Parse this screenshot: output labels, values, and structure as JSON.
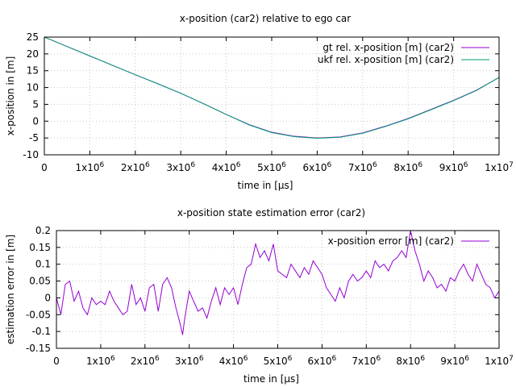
{
  "chart_data": [
    {
      "type": "line",
      "title": "x-position (car2) relative to ego car",
      "xlabel": "time in [μs]",
      "ylabel": "x-position in [m]",
      "xlim": [
        0,
        10000000
      ],
      "ylim": [
        -10,
        25
      ],
      "x_ticks": [
        {
          "value": 0,
          "base": "0",
          "exp": ""
        },
        {
          "value": 1000000,
          "base": "1x10",
          "exp": "6"
        },
        {
          "value": 2000000,
          "base": "2x10",
          "exp": "6"
        },
        {
          "value": 3000000,
          "base": "3x10",
          "exp": "6"
        },
        {
          "value": 4000000,
          "base": "4x10",
          "exp": "6"
        },
        {
          "value": 5000000,
          "base": "5x10",
          "exp": "6"
        },
        {
          "value": 6000000,
          "base": "6x10",
          "exp": "6"
        },
        {
          "value": 7000000,
          "base": "7x10",
          "exp": "6"
        },
        {
          "value": 8000000,
          "base": "8x10",
          "exp": "6"
        },
        {
          "value": 9000000,
          "base": "9x10",
          "exp": "6"
        },
        {
          "value": 10000000,
          "base": "1x10",
          "exp": "7"
        }
      ],
      "y_ticks": [
        {
          "value": 25,
          "label": "25"
        },
        {
          "value": 20,
          "label": "20"
        },
        {
          "value": 15,
          "label": "15"
        },
        {
          "value": 10,
          "label": "10"
        },
        {
          "value": 5,
          "label": "5"
        },
        {
          "value": 0,
          "label": "0"
        },
        {
          "value": -5,
          "label": "-5"
        },
        {
          "value": -10,
          "label": "-10"
        }
      ],
      "grid": true,
      "legend_position": "top-right",
      "series": [
        {
          "name": "gt rel. x-position [m] (car2)",
          "color": "#9400d3",
          "x": [
            0,
            500000,
            1000000,
            1500000,
            2000000,
            2500000,
            3000000,
            3500000,
            4000000,
            4500000,
            5000000,
            5500000,
            6000000,
            6500000,
            7000000,
            7500000,
            8000000,
            8500000,
            9000000,
            9500000,
            10000000
          ],
          "y": [
            25,
            22.2,
            19.4,
            16.6,
            13.8,
            11.1,
            8.3,
            5.2,
            2,
            -1,
            -3.3,
            -4.5,
            -5,
            -4.7,
            -3.5,
            -1.5,
            0.8,
            3.5,
            6.2,
            9.2,
            13
          ]
        },
        {
          "name": "ukf rel. x-position [m] (car2)",
          "color": "#009e73",
          "x": [
            0,
            500000,
            1000000,
            1500000,
            2000000,
            2500000,
            3000000,
            3500000,
            4000000,
            4500000,
            5000000,
            5500000,
            6000000,
            6500000,
            7000000,
            7500000,
            8000000,
            8500000,
            9000000,
            9500000,
            10000000
          ],
          "y": [
            25,
            22.2,
            19.4,
            16.6,
            13.8,
            11.1,
            8.3,
            5.2,
            2,
            -1.1,
            -3.4,
            -4.6,
            -5.1,
            -4.8,
            -3.6,
            -1.6,
            0.7,
            3.4,
            6.1,
            9.1,
            13
          ]
        }
      ]
    },
    {
      "type": "line",
      "title": "x-position state estimation error (car2)",
      "xlabel": "time in [μs]",
      "ylabel": "estimation error in [m]",
      "xlim": [
        0,
        10000000
      ],
      "ylim": [
        -0.15,
        0.2
      ],
      "x_ticks": [
        {
          "value": 0,
          "base": "0",
          "exp": ""
        },
        {
          "value": 1000000,
          "base": "1x10",
          "exp": "6"
        },
        {
          "value": 2000000,
          "base": "2x10",
          "exp": "6"
        },
        {
          "value": 3000000,
          "base": "3x10",
          "exp": "6"
        },
        {
          "value": 4000000,
          "base": "4x10",
          "exp": "6"
        },
        {
          "value": 5000000,
          "base": "5x10",
          "exp": "6"
        },
        {
          "value": 6000000,
          "base": "6x10",
          "exp": "6"
        },
        {
          "value": 7000000,
          "base": "7x10",
          "exp": "6"
        },
        {
          "value": 8000000,
          "base": "8x10",
          "exp": "6"
        },
        {
          "value": 9000000,
          "base": "9x10",
          "exp": "6"
        },
        {
          "value": 10000000,
          "base": "1x10",
          "exp": "7"
        }
      ],
      "y_ticks": [
        {
          "value": 0.2,
          "label": "0.2"
        },
        {
          "value": 0.15,
          "label": "0.15"
        },
        {
          "value": 0.1,
          "label": "0.1"
        },
        {
          "value": 0.05,
          "label": "0.05"
        },
        {
          "value": 0,
          "label": "0"
        },
        {
          "value": -0.05,
          "label": "-0.05"
        },
        {
          "value": -0.1,
          "label": "-0.1"
        },
        {
          "value": -0.15,
          "label": "-0.15"
        }
      ],
      "grid": true,
      "legend_position": "top-right",
      "series": [
        {
          "name": "x-position error [m] (car2)",
          "color": "#9400d3",
          "x": [
            0,
            100000,
            200000,
            300000,
            400000,
            500000,
            600000,
            700000,
            800000,
            900000,
            1000000,
            1100000,
            1200000,
            1300000,
            1400000,
            1500000,
            1600000,
            1700000,
            1800000,
            1900000,
            2000000,
            2100000,
            2200000,
            2300000,
            2400000,
            2500000,
            2600000,
            2700000,
            2800000,
            2850000,
            2900000,
            3000000,
            3100000,
            3200000,
            3300000,
            3400000,
            3500000,
            3600000,
            3700000,
            3800000,
            3900000,
            4000000,
            4100000,
            4200000,
            4300000,
            4400000,
            4500000,
            4600000,
            4700000,
            4800000,
            4900000,
            5000000,
            5100000,
            5200000,
            5300000,
            5400000,
            5500000,
            5600000,
            5700000,
            5800000,
            5900000,
            6000000,
            6100000,
            6200000,
            6300000,
            6400000,
            6500000,
            6600000,
            6700000,
            6800000,
            6900000,
            7000000,
            7100000,
            7200000,
            7300000,
            7400000,
            7500000,
            7600000,
            7700000,
            7800000,
            7900000,
            8000000,
            8100000,
            8200000,
            8300000,
            8400000,
            8500000,
            8600000,
            8700000,
            8800000,
            8900000,
            9000000,
            9100000,
            9200000,
            9300000,
            9400000,
            9500000,
            9600000,
            9700000,
            9800000,
            9900000,
            10000000
          ],
          "y": [
            0,
            -0.05,
            0.04,
            0.05,
            -0.01,
            0.02,
            -0.03,
            -0.05,
            0.0,
            -0.02,
            -0.01,
            -0.02,
            0.02,
            -0.01,
            -0.03,
            -0.05,
            -0.04,
            0.04,
            -0.02,
            0.0,
            -0.04,
            0.03,
            0.04,
            -0.04,
            0.04,
            0.06,
            0.03,
            -0.03,
            -0.08,
            -0.11,
            -0.06,
            0.02,
            -0.01,
            -0.04,
            -0.03,
            -0.06,
            -0.01,
            0.03,
            -0.02,
            0.03,
            0.01,
            0.03,
            -0.02,
            0.04,
            0.09,
            0.1,
            0.16,
            0.12,
            0.14,
            0.11,
            0.16,
            0.08,
            0.07,
            0.06,
            0.1,
            0.08,
            0.06,
            0.09,
            0.07,
            0.11,
            0.09,
            0.07,
            0.03,
            0.01,
            -0.01,
            0.03,
            0.0,
            0.05,
            0.07,
            0.05,
            0.06,
            0.08,
            0.06,
            0.11,
            0.09,
            0.1,
            0.08,
            0.11,
            0.12,
            0.14,
            0.12,
            0.2,
            0.14,
            0.1,
            0.05,
            0.08,
            0.06,
            0.03,
            0.04,
            0.02,
            0.06,
            0.05,
            0.08,
            0.1,
            0.07,
            0.05,
            0.1,
            0.07,
            0.04,
            0.03,
            0.0,
            0.02
          ]
        }
      ]
    }
  ]
}
